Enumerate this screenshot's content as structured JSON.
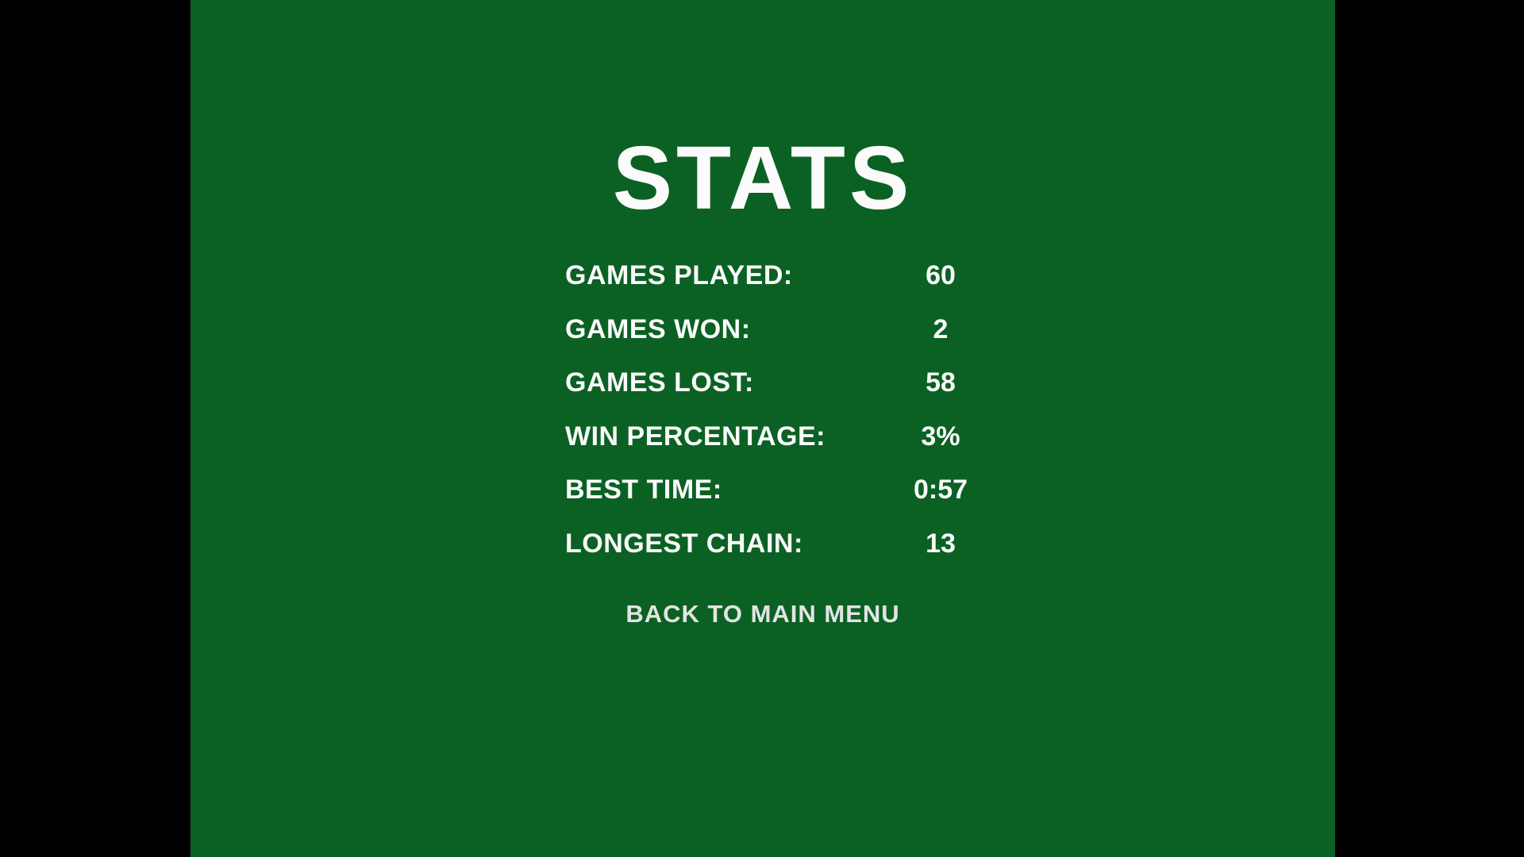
{
  "screen": {
    "title": "STATS",
    "stats": [
      {
        "label": "GAMES PLAYED:",
        "value": "60"
      },
      {
        "label": "GAMES WON:",
        "value": "2"
      },
      {
        "label": "GAMES LOST:",
        "value": "58"
      },
      {
        "label": "WIN PERCENTAGE:",
        "value": "3%"
      },
      {
        "label": "BEST TIME:",
        "value": "0:57"
      },
      {
        "label": "LONGEST CHAIN:",
        "value": "13"
      }
    ],
    "back_button_label": "BACK TO MAIN MENU",
    "colors": {
      "letterbox": "#000000",
      "panel_green": "#0B6123",
      "text": "#FBFBFB",
      "button_text": "#E4E4E4"
    }
  }
}
